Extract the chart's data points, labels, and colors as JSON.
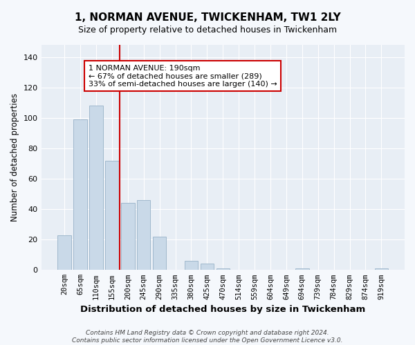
{
  "title1": "1, NORMAN AVENUE, TWICKENHAM, TW1 2LY",
  "title2": "Size of property relative to detached houses in Twickenham",
  "xlabel": "Distribution of detached houses by size in Twickenham",
  "ylabel": "Number of detached properties",
  "categories": [
    "20sqm",
    "65sqm",
    "110sqm",
    "155sqm",
    "200sqm",
    "245sqm",
    "290sqm",
    "335sqm",
    "380sqm",
    "425sqm",
    "470sqm",
    "514sqm",
    "559sqm",
    "604sqm",
    "649sqm",
    "694sqm",
    "739sqm",
    "784sqm",
    "829sqm",
    "874sqm",
    "919sqm"
  ],
  "values": [
    23,
    99,
    108,
    72,
    44,
    46,
    22,
    0,
    6,
    4,
    1,
    0,
    0,
    0,
    0,
    1,
    0,
    0,
    0,
    0,
    1
  ],
  "bar_color": "#c9d9e8",
  "bar_edge_color": "#a0b8cc",
  "vline_x_index": 4,
  "vline_color": "#cc0000",
  "annotation_text": "1 NORMAN AVENUE: 190sqm\n← 67% of detached houses are smaller (289)\n33% of semi-detached houses are larger (140) →",
  "annotation_box_color": "#ffffff",
  "annotation_box_edge": "#cc0000",
  "ylim": [
    0,
    148
  ],
  "yticks": [
    0,
    20,
    40,
    60,
    80,
    100,
    120,
    140
  ],
  "axes_bg_color": "#e8eef5",
  "fig_bg_color": "#f5f8fc",
  "footer": "Contains HM Land Registry data © Crown copyright and database right 2024.\nContains public sector information licensed under the Open Government Licence v3.0.",
  "title1_fontsize": 11,
  "title2_fontsize": 9,
  "ylabel_fontsize": 8.5,
  "xlabel_fontsize": 9.5,
  "tick_fontsize": 7.5,
  "annotation_fontsize": 8,
  "footer_fontsize": 6.5
}
